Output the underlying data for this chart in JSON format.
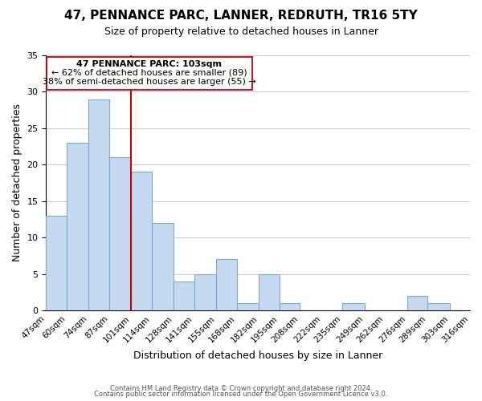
{
  "title": "47, PENNANCE PARC, LANNER, REDRUTH, TR16 5TY",
  "subtitle": "Size of property relative to detached houses in Lanner",
  "xlabel": "Distribution of detached houses by size in Lanner",
  "ylabel": "Number of detached properties",
  "bin_edges": [
    47,
    60,
    74,
    87,
    101,
    114,
    128,
    141,
    155,
    168,
    182,
    195,
    208,
    222,
    235,
    249,
    262,
    276,
    289,
    303,
    316
  ],
  "bin_labels": [
    "47sqm",
    "60sqm",
    "74sqm",
    "87sqm",
    "101sqm",
    "114sqm",
    "128sqm",
    "141sqm",
    "155sqm",
    "168sqm",
    "182sqm",
    "195sqm",
    "208sqm",
    "222sqm",
    "235sqm",
    "249sqm",
    "262sqm",
    "276sqm",
    "289sqm",
    "303sqm",
    "316sqm"
  ],
  "counts": [
    13,
    23,
    29,
    21,
    19,
    12,
    4,
    5,
    7,
    1,
    5,
    1,
    0,
    0,
    1,
    0,
    0,
    2,
    1,
    0
  ],
  "bar_color": "#c5d9f1",
  "bar_edge_color": "#7aadcc",
  "reference_line_x": 101,
  "reference_line_color": "#cc0000",
  "ylim": [
    0,
    35
  ],
  "yticks": [
    0,
    5,
    10,
    15,
    20,
    25,
    30,
    35
  ],
  "annotation_title": "47 PENNANCE PARC: 103sqm",
  "annotation_line1": "← 62% of detached houses are smaller (89)",
  "annotation_line2": "38% of semi-detached houses are larger (55) →",
  "footer_line1": "Contains HM Land Registry data © Crown copyright and database right 2024.",
  "footer_line2": "Contains public sector information licensed under the Open Government Licence v3.0.",
  "background_color": "#ffffff",
  "grid_color": "#cccccc"
}
